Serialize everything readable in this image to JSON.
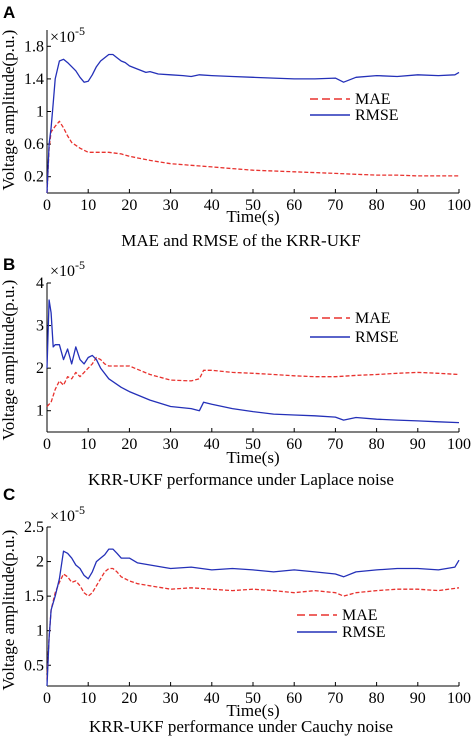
{
  "figure": {
    "panels": [
      {
        "letter": "A",
        "caption": "MAE and RMSE of the KRR-UKF"
      },
      {
        "letter": "B",
        "caption": "KRR-UKF performance under Laplace noise"
      },
      {
        "letter": "C",
        "caption": "KRR-UKF performance under Cauchy noise"
      }
    ]
  },
  "chart_data": [
    {
      "type": "line",
      "xlabel": "Time(s)",
      "ylabel": "Voltage amplitude(p.u.)",
      "y_multiplier": "×10",
      "y_exponent": "-5",
      "xlim": [
        0,
        100
      ],
      "ylim": [
        0,
        2.0
      ],
      "x_ticks": [
        0,
        10,
        20,
        30,
        40,
        50,
        60,
        70,
        80,
        90,
        100
      ],
      "y_ticks": [
        0.2,
        0.6,
        1,
        1.4,
        1.8
      ],
      "y_tick_labels": [
        "0.2",
        "0.6",
        "1",
        "1.4",
        "1.8"
      ],
      "legend_position": "center-right",
      "series": [
        {
          "name": "MAE",
          "color": "#e8322e",
          "style": "dashed",
          "x": [
            0,
            0.5,
            1,
            2,
            3,
            4,
            5,
            6,
            8,
            10,
            12,
            15,
            18,
            20,
            25,
            30,
            35,
            40,
            45,
            50,
            55,
            60,
            65,
            70,
            75,
            80,
            85,
            90,
            95,
            100
          ],
          "y": [
            0.0,
            0.55,
            0.75,
            0.82,
            0.88,
            0.8,
            0.7,
            0.62,
            0.55,
            0.5,
            0.5,
            0.5,
            0.48,
            0.45,
            0.4,
            0.36,
            0.34,
            0.32,
            0.3,
            0.28,
            0.27,
            0.26,
            0.25,
            0.24,
            0.23,
            0.22,
            0.22,
            0.21,
            0.21,
            0.21
          ]
        },
        {
          "name": "RMSE",
          "color": "#2430b8",
          "style": "solid",
          "x": [
            0,
            0.5,
            1,
            1.5,
            2,
            3,
            4,
            5,
            6,
            7,
            8,
            9,
            10,
            11,
            12,
            13,
            14,
            15,
            16,
            17,
            18,
            19,
            20,
            22,
            24,
            25,
            27,
            30,
            33,
            35,
            37,
            40,
            45,
            50,
            55,
            60,
            65,
            70,
            72,
            75,
            80,
            85,
            90,
            95,
            99,
            100
          ],
          "y": [
            0.0,
            0.6,
            0.8,
            1.1,
            1.4,
            1.62,
            1.64,
            1.6,
            1.55,
            1.5,
            1.42,
            1.36,
            1.37,
            1.45,
            1.55,
            1.62,
            1.66,
            1.7,
            1.7,
            1.66,
            1.62,
            1.6,
            1.56,
            1.52,
            1.48,
            1.49,
            1.46,
            1.45,
            1.44,
            1.43,
            1.45,
            1.44,
            1.43,
            1.42,
            1.41,
            1.4,
            1.4,
            1.41,
            1.36,
            1.42,
            1.44,
            1.43,
            1.45,
            1.44,
            1.45,
            1.48
          ]
        }
      ]
    },
    {
      "type": "line",
      "xlabel": "Time(s)",
      "ylabel": "Voltage amplitude(p.u.)",
      "y_multiplier": "×10",
      "y_exponent": "-5",
      "xlim": [
        0,
        100
      ],
      "ylim": [
        0.5,
        4.0
      ],
      "x_ticks": [
        0,
        10,
        20,
        30,
        40,
        50,
        60,
        70,
        80,
        90,
        100
      ],
      "y_ticks": [
        1,
        2,
        3,
        4
      ],
      "y_tick_labels": [
        "1",
        "2",
        "3",
        "4"
      ],
      "legend_position": "center-right",
      "series": [
        {
          "name": "MAE",
          "color": "#e8322e",
          "style": "dashed",
          "x": [
            0,
            1,
            2,
            3,
            4,
            5,
            6,
            7,
            8,
            9,
            10,
            11,
            12,
            13,
            14,
            15,
            17,
            20,
            25,
            30,
            35,
            37,
            38,
            40,
            45,
            50,
            55,
            60,
            65,
            70,
            75,
            80,
            85,
            90,
            95,
            100
          ],
          "y": [
            1.1,
            1.2,
            1.5,
            1.7,
            1.6,
            1.8,
            1.75,
            1.9,
            1.8,
            1.9,
            2.0,
            2.1,
            2.25,
            2.2,
            2.1,
            2.05,
            2.05,
            2.05,
            1.85,
            1.72,
            1.7,
            1.75,
            1.95,
            1.95,
            1.9,
            1.88,
            1.85,
            1.82,
            1.8,
            1.8,
            1.83,
            1.85,
            1.88,
            1.9,
            1.88,
            1.85
          ]
        },
        {
          "name": "RMSE",
          "color": "#2430b8",
          "style": "solid",
          "x": [
            0,
            0.5,
            1,
            1.5,
            2,
            3,
            4,
            5,
            6,
            7,
            8,
            9,
            10,
            11,
            12,
            13,
            15,
            18,
            20,
            25,
            30,
            35,
            37,
            38,
            40,
            45,
            50,
            55,
            60,
            65,
            70,
            72,
            75,
            80,
            85,
            90,
            95,
            100
          ],
          "y": [
            2.0,
            3.6,
            3.3,
            2.5,
            2.55,
            2.55,
            2.2,
            2.45,
            2.1,
            2.5,
            2.2,
            2.1,
            2.25,
            2.3,
            2.2,
            2.0,
            1.75,
            1.55,
            1.45,
            1.25,
            1.1,
            1.05,
            1.0,
            1.2,
            1.15,
            1.05,
            0.98,
            0.92,
            0.9,
            0.88,
            0.85,
            0.78,
            0.84,
            0.8,
            0.78,
            0.76,
            0.74,
            0.72
          ]
        }
      ]
    },
    {
      "type": "line",
      "xlabel": "Time(s)",
      "ylabel": "Voltage amplitude(p.u.)",
      "y_multiplier": "×10",
      "y_exponent": "-5",
      "xlim": [
        0,
        100
      ],
      "ylim": [
        0.2,
        2.5
      ],
      "x_ticks": [
        0,
        10,
        20,
        30,
        40,
        50,
        60,
        70,
        80,
        90,
        100
      ],
      "y_ticks": [
        0.5,
        1,
        1.5,
        2,
        2.5
      ],
      "y_tick_labels": [
        "0.5",
        "1",
        "1.5",
        "2",
        "2.5"
      ],
      "legend_position": "bottom-right",
      "series": [
        {
          "name": "MAE",
          "color": "#e8322e",
          "style": "dashed",
          "x": [
            0,
            0.5,
            1,
            2,
            3,
            4,
            5,
            6,
            7,
            8,
            9,
            10,
            11,
            12,
            13,
            14,
            15,
            16,
            17,
            18,
            20,
            22,
            25,
            28,
            30,
            35,
            40,
            45,
            50,
            55,
            60,
            65,
            70,
            72,
            75,
            80,
            85,
            90,
            95,
            100
          ],
          "y": [
            0.3,
            0.9,
            1.3,
            1.55,
            1.7,
            1.82,
            1.78,
            1.7,
            1.72,
            1.65,
            1.55,
            1.5,
            1.55,
            1.65,
            1.75,
            1.85,
            1.9,
            1.9,
            1.85,
            1.78,
            1.72,
            1.68,
            1.65,
            1.62,
            1.6,
            1.62,
            1.6,
            1.58,
            1.6,
            1.58,
            1.55,
            1.58,
            1.55,
            1.5,
            1.55,
            1.58,
            1.6,
            1.6,
            1.58,
            1.62
          ]
        },
        {
          "name": "RMSE",
          "color": "#2430b8",
          "style": "solid",
          "x": [
            0,
            0.5,
            1,
            2,
            3,
            4,
            5,
            6,
            7,
            8,
            9,
            10,
            11,
            12,
            13,
            14,
            15,
            16,
            17,
            18,
            20,
            22,
            25,
            28,
            30,
            35,
            40,
            45,
            50,
            55,
            60,
            65,
            70,
            72,
            75,
            80,
            85,
            90,
            95,
            99,
            100
          ],
          "y": [
            0.2,
            0.9,
            1.3,
            1.5,
            1.75,
            2.15,
            2.12,
            2.05,
            1.95,
            1.9,
            1.8,
            1.75,
            1.85,
            2.0,
            2.05,
            2.1,
            2.18,
            2.18,
            2.12,
            2.05,
            2.05,
            1.98,
            1.95,
            1.92,
            1.9,
            1.92,
            1.88,
            1.9,
            1.88,
            1.85,
            1.88,
            1.85,
            1.82,
            1.78,
            1.85,
            1.88,
            1.9,
            1.9,
            1.88,
            1.92,
            2.02
          ]
        }
      ]
    }
  ]
}
